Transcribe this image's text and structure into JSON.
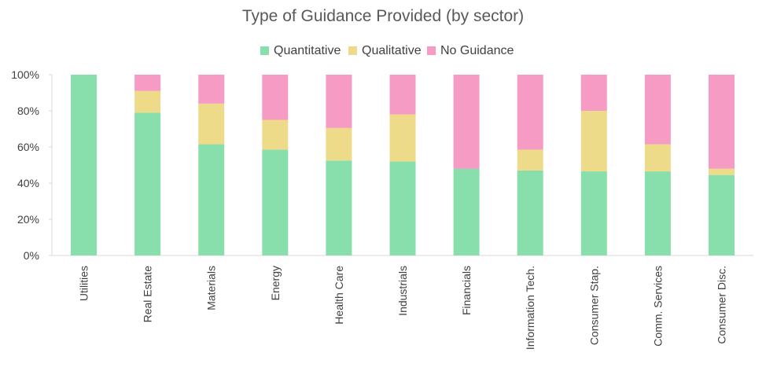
{
  "chart_data": {
    "type": "bar",
    "stacked": true,
    "title": "Type of Guidance Provided (by sector)",
    "xlabel": "",
    "ylabel": "",
    "categories": [
      "Utilities",
      "Real Estate",
      "Materials",
      "Energy",
      "Health Care",
      "Industrials",
      "Financials",
      "Information Tech.",
      "Consumer Stap.",
      "Comm. Services",
      "Consumer Disc."
    ],
    "series": [
      {
        "name": "Quantitative",
        "color": "#88dfab",
        "values": [
          100,
          79,
          61.5,
          58.5,
          52.5,
          52,
          48,
          47,
          46.5,
          46.5,
          44.5
        ]
      },
      {
        "name": "Qualitative",
        "color": "#eedb8a",
        "values": [
          0,
          12,
          22.5,
          16.5,
          18,
          26,
          0,
          11.5,
          33.5,
          15,
          3.5
        ]
      },
      {
        "name": "No Guidance",
        "color": "#f59bc4",
        "values": [
          0,
          9,
          16,
          25,
          29.5,
          22,
          52,
          41.5,
          20,
          38.5,
          52
        ]
      }
    ],
    "ylim": [
      0,
      100
    ],
    "yticks": [
      "0%",
      "20%",
      "40%",
      "60%",
      "80%",
      "100%"
    ],
    "legend_position": "top",
    "grid": false
  }
}
